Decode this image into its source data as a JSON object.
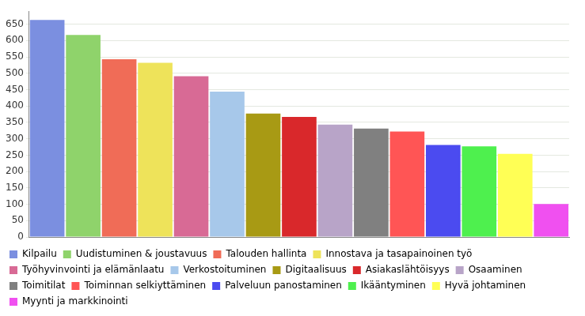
{
  "chart_data": {
    "type": "bar",
    "categories": [
      "Kilpailu",
      "Uudistuminen & joustavuus",
      "Talouden hallinta",
      "Innostava ja tasapainoinen työ",
      "Työhyvinvointi ja elämänlaatu",
      "Verkostoituminen",
      "Digitaalisuus",
      "Asiakaslähtöisyys",
      "Osaaminen",
      "Toimitilat",
      "Toiminnan selkiyttäminen",
      "Palveluun panostaminen",
      "Ikääntyminen",
      "Hyvä johtaminen",
      "Myynti ja markkinointi"
    ],
    "values": [
      663,
      617,
      543,
      532,
      491,
      444,
      377,
      367,
      343,
      331,
      322,
      281,
      277,
      254,
      101
    ],
    "colors": [
      "#7b8fe0",
      "#8fd36b",
      "#f06c57",
      "#eee35a",
      "#d86a95",
      "#a7c8ea",
      "#a89a14",
      "#d9282b",
      "#b8a4c8",
      "#808080",
      "#ff5555",
      "#4b4bf0",
      "#4ef04e",
      "#ffff55",
      "#f050f0"
    ],
    "ylim": [
      0,
      690
    ],
    "yticks": [
      0,
      50,
      100,
      150,
      200,
      250,
      300,
      350,
      400,
      450,
      500,
      550,
      600,
      650
    ],
    "grid": true,
    "legend": "bottom",
    "tick_labels": "y"
  }
}
